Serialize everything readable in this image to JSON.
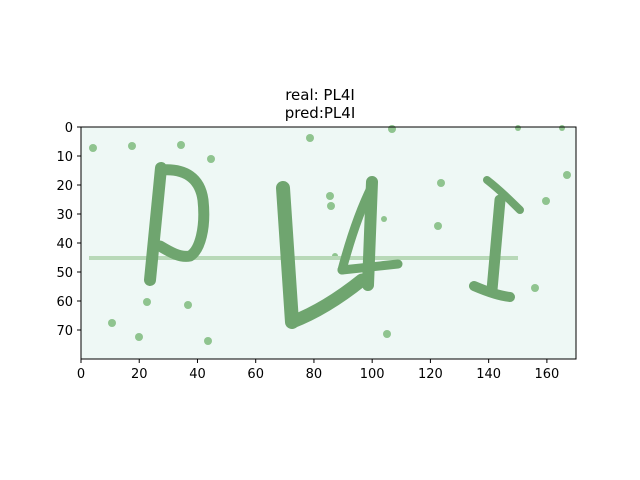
{
  "title_line1": "real: PL4I",
  "title_line2": "pred:PL4I",
  "image": {
    "type": "captcha",
    "text": "PL4I",
    "background_color": "#eef8f5",
    "glyph_color": "#6fa56f",
    "noise_color": "#8fc48f",
    "line_color": "#b8d9b8"
  },
  "axes": {
    "xlim": [
      0,
      170
    ],
    "ylim": [
      80,
      0
    ],
    "xticks": [
      0,
      20,
      40,
      60,
      80,
      100,
      120,
      140,
      160
    ],
    "yticks": [
      0,
      10,
      20,
      30,
      40,
      50,
      60,
      70
    ]
  }
}
